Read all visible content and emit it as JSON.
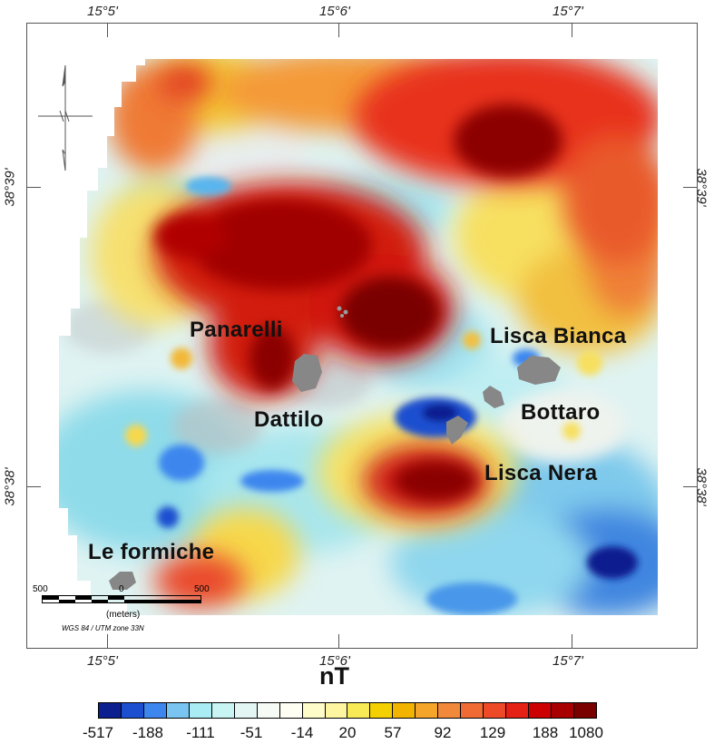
{
  "coordinates": {
    "top_lon": [
      "15°5'",
      "15°6'",
      "15°7'"
    ],
    "bottom_lon": [
      "15°5'",
      "15°6'",
      "15°7'"
    ],
    "left_lat": [
      "38°39'",
      "38°38'"
    ],
    "right_lat": [
      "38°39'",
      "38°38'"
    ]
  },
  "places": {
    "panarelli": "Panarelli",
    "lisca_bianca": "Lisca Bianca",
    "dattilo": "Dattilo",
    "bottaro": "Bottaro",
    "lisca_nera": "Lisca Nera",
    "le_formiche": "Le formiche"
  },
  "scale": {
    "left": "500",
    "middle": "0",
    "right": "500",
    "unit": "(meters)",
    "projection": "WGS 84 / UTM zone 33N"
  },
  "legend": {
    "title": "nT",
    "labels": [
      "-517",
      "-188",
      "-111",
      "-51",
      "-14",
      "20",
      "57",
      "92",
      "129",
      "188",
      "1080"
    ],
    "colors": [
      "#0b1f8f",
      "#1c4fd0",
      "#3d86ee",
      "#79c4f1",
      "#a9ecf3",
      "#c8f4f4",
      "#e3f6f4",
      "#f6fbf6",
      "#fefef2",
      "#fefcc8",
      "#fdf5a0",
      "#f8ea55",
      "#f5d000",
      "#f3b400",
      "#f4a52a",
      "#f2883a",
      "#f06a33",
      "#ef4a28",
      "#e52015",
      "#cc0000",
      "#a80000",
      "#7a0000"
    ]
  },
  "icons": {
    "north_arrow": "north-arrow-icon"
  }
}
